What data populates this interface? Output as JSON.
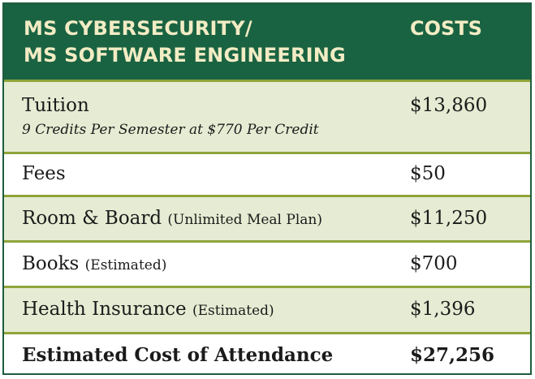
{
  "header": {
    "title_line1": "MS CYBERSECURITY/",
    "title_line2": "MS SOFTWARE ENGINEERING",
    "costs": "COSTS"
  },
  "rows": [
    {
      "item": "Tuition",
      "detail": "9 Credits Per Semester at $770 Per Credit",
      "cost": "$13,860"
    },
    {
      "item": "Fees",
      "cost": "$50"
    },
    {
      "item": "Room & Board",
      "note": "(Unlimited Meal Plan)",
      "cost": "$11,250"
    },
    {
      "item": "Books",
      "note": "(Estimated)",
      "cost": "$700"
    },
    {
      "item": "Health Insurance",
      "note": "(Estimated)",
      "cost": "$1,396"
    }
  ],
  "total": {
    "label": "Estimated Cost of Attendance",
    "cost": "$27,256"
  }
}
